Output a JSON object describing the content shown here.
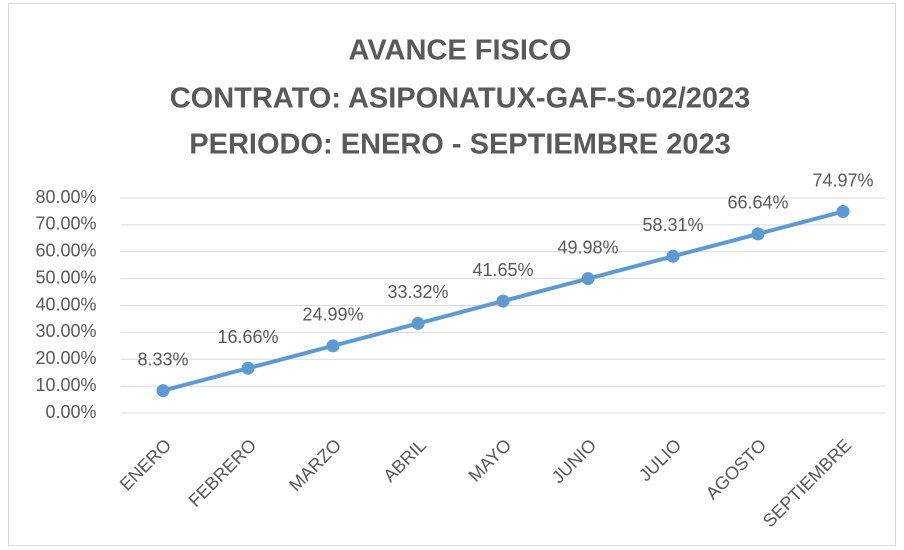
{
  "chart_data": {
    "type": "line",
    "title": [
      "AVANCE FISICO",
      "CONTRATO: ASIPONATUX-GAF-S-02/2023",
      "PERIODO: ENERO - SEPTIEMBRE 2023"
    ],
    "categories": [
      "ENERO",
      "FEBRERO",
      "MARZO",
      "ABRIL",
      "MAYO",
      "JUNIO",
      "JULIO",
      "AGOSTO",
      "SEPTIEMBRE"
    ],
    "series": [
      {
        "color": "#5b9bd5",
        "values": [
          8.33,
          16.66,
          24.99,
          33.32,
          41.65,
          49.98,
          58.31,
          66.64,
          74.97
        ],
        "value_labels": [
          "8.33%",
          "16.66%",
          "24.99%",
          "33.32%",
          "41.65%",
          "49.98%",
          "58.31%",
          "66.64%",
          "74.97%"
        ]
      }
    ],
    "ylim": [
      0,
      80
    ],
    "yticks": [
      {
        "value": 0,
        "label": "0.00%"
      },
      {
        "value": 10,
        "label": "10.00%"
      },
      {
        "value": 20,
        "label": "20.00%"
      },
      {
        "value": 30,
        "label": "30.00%"
      },
      {
        "value": 40,
        "label": "40.00%"
      },
      {
        "value": 50,
        "label": "50.00%"
      },
      {
        "value": 60,
        "label": "60.00%"
      },
      {
        "value": 70,
        "label": "70.00%"
      },
      {
        "value": 80,
        "label": "80.00%"
      }
    ],
    "grid": true
  }
}
